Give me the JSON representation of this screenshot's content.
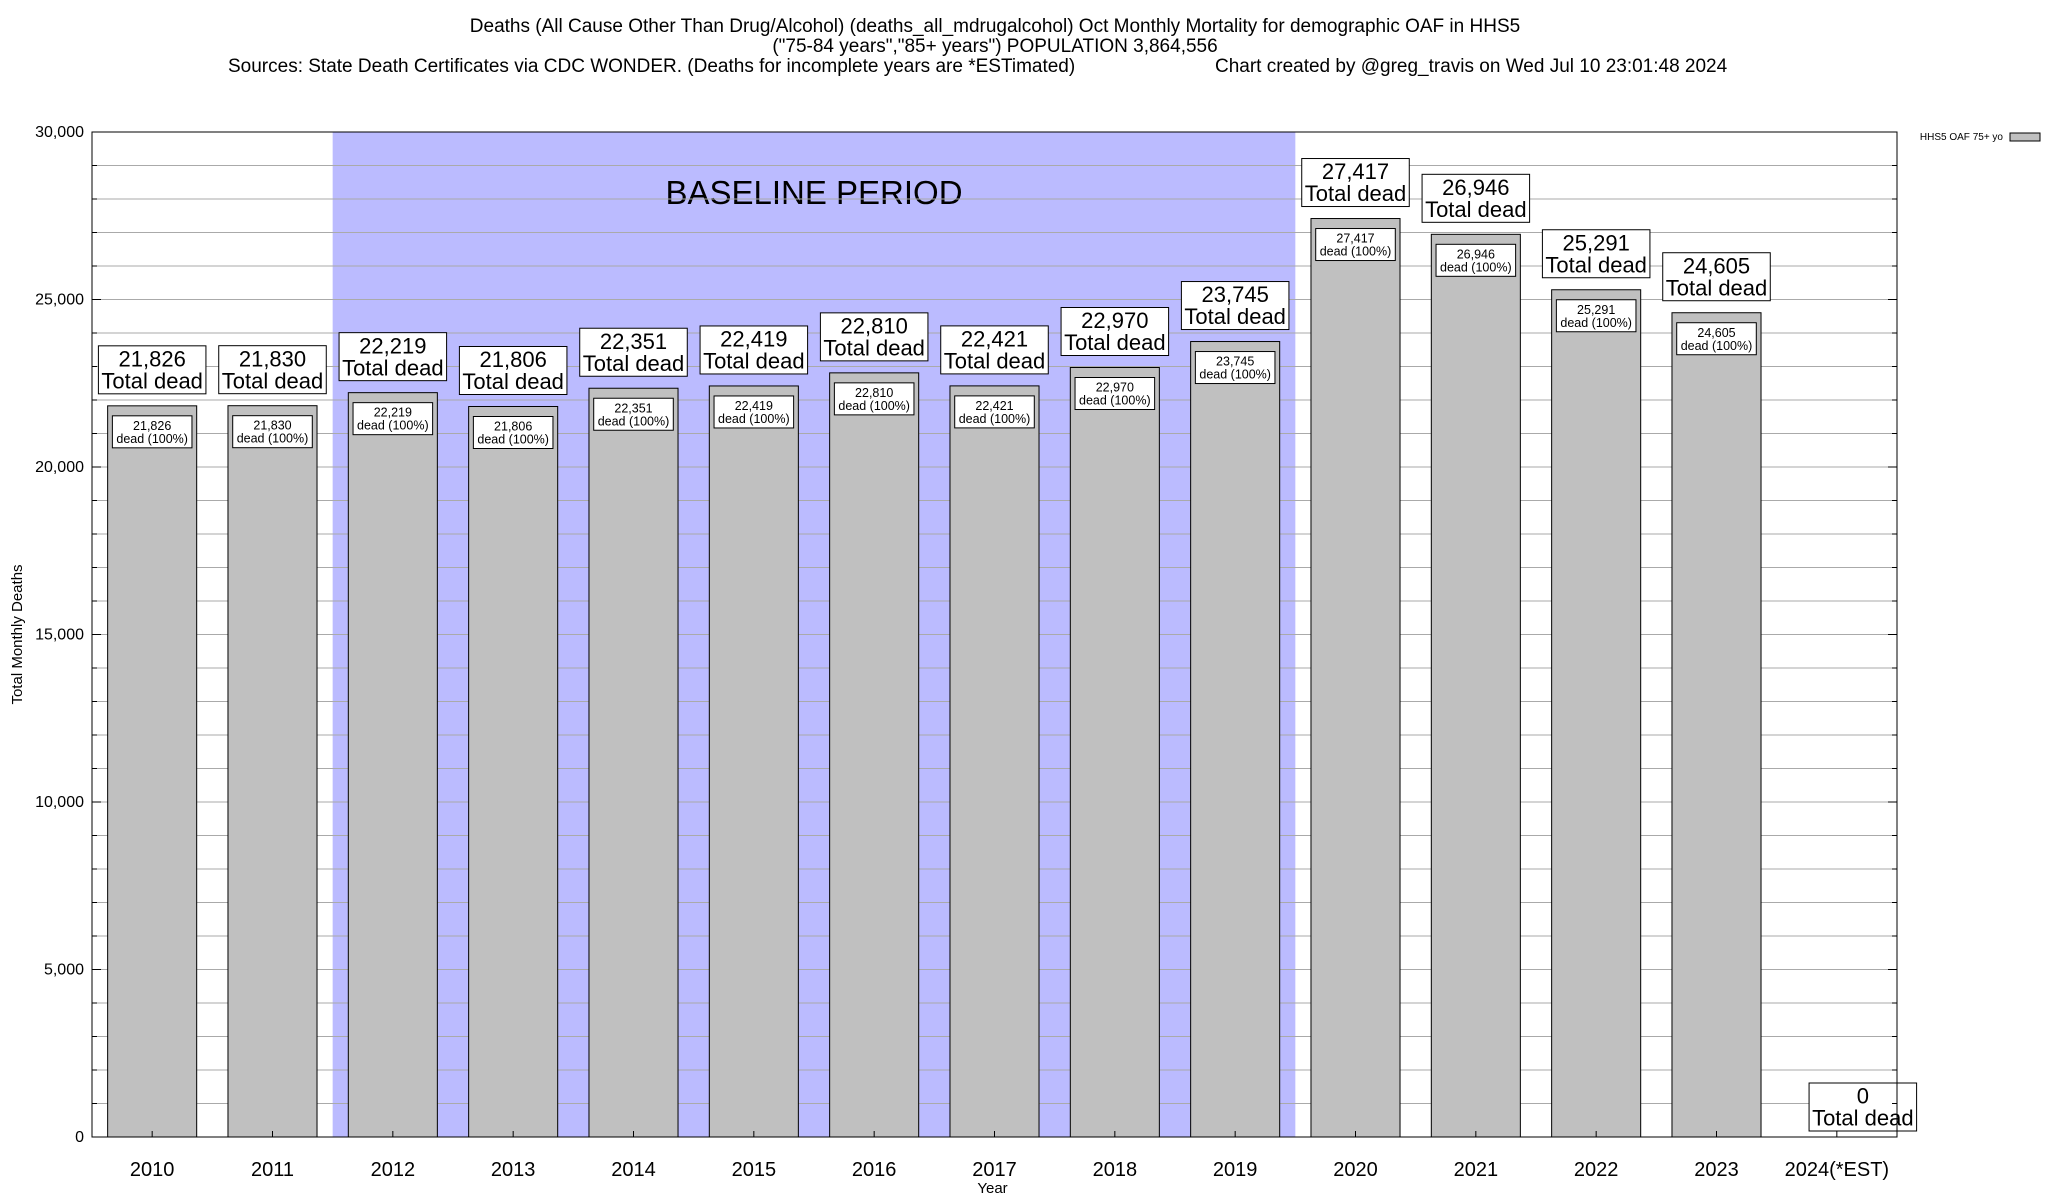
{
  "title": {
    "line1": "Deaths (All Cause Other Than Drug/Alcohol) (deaths_all_mdrugalcohol) Oct Monthly Mortality for demographic OAF in HHS5",
    "line2": "(\"75-84 years\",\"85+ years\") POPULATION 3,864,556",
    "line3_left": "Sources: State Death Certificates via CDC WONDER. (Deaths for incomplete years are *ESTimated)",
    "line3_right": "Chart created by @greg_travis on Wed Jul 10 23:01:48 2024"
  },
  "chart_data": {
    "type": "bar",
    "xlabel": "Year",
    "ylabel": "Total Monthly Deaths",
    "ylim": [
      0,
      30000
    ],
    "yticks": [
      0,
      5000,
      10000,
      15000,
      20000,
      25000,
      30000
    ],
    "ytick_labels": [
      "0",
      "5,000",
      "10,000",
      "15,000",
      "20,000",
      "25,000",
      "30,000"
    ],
    "categories": [
      "2010",
      "2011",
      "2012",
      "2013",
      "2014",
      "2015",
      "2016",
      "2017",
      "2018",
      "2019",
      "2020",
      "2021",
      "2022",
      "2023",
      "2024(*EST)"
    ],
    "series": [
      {
        "name": "HHS5 OAF 75+ yo",
        "values": [
          21826,
          21830,
          22219,
          21806,
          22351,
          22419,
          22810,
          22421,
          22970,
          23745,
          27417,
          26946,
          25291,
          24605,
          0
        ],
        "value_labels": [
          "21,826",
          "21,830",
          "22,219",
          "21,806",
          "22,351",
          "22,419",
          "22,810",
          "22,421",
          "22,970",
          "23,745",
          "27,417",
          "26,946",
          "25,291",
          "24,605",
          "0"
        ],
        "color": "#c0c0c0"
      }
    ],
    "total_label_text": "Total dead",
    "inner_label_text": "dead (100%)",
    "baseline": {
      "label": "BASELINE PERIOD",
      "from": "2012",
      "to": "2019",
      "color": "#bbbbff"
    },
    "grid": "horizontal",
    "legend_position": "top-right"
  }
}
